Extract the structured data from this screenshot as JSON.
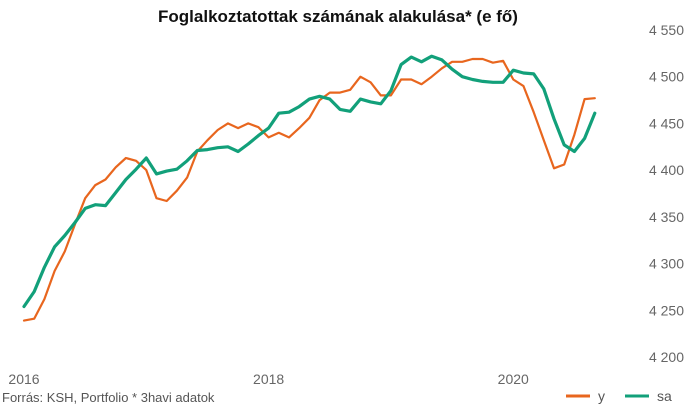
{
  "chart_data": {
    "type": "line",
    "title": "Foglalkoztatottak számának alakulása* (e fő)",
    "source": "Forrás: KSH, Portfolio  * 3havi adatok",
    "xlabel": "",
    "ylabel": "",
    "ylim": [
      4200,
      4550
    ],
    "yticks": [
      4200,
      4250,
      4300,
      4350,
      4400,
      4450,
      4500,
      4550
    ],
    "ytick_labels": [
      "4 200",
      "4 250",
      "4 300",
      "4 350",
      "4 400",
      "4 450",
      "4 500",
      "4 550"
    ],
    "xlim": [
      2016.0,
      2020.75
    ],
    "xticks": [
      2016,
      2018,
      2020
    ],
    "xtick_labels": [
      "2016",
      "2018",
      "2020"
    ],
    "grid": false,
    "legend_position": "bottom-right",
    "series": [
      {
        "name": "y",
        "color": "#e8661e",
        "x": [
          2016.0,
          2016.0833,
          2016.1667,
          2016.25,
          2016.3333,
          2016.4167,
          2016.5,
          2016.5833,
          2016.6667,
          2016.75,
          2016.8333,
          2016.9167,
          2017.0,
          2017.0833,
          2017.1667,
          2017.25,
          2017.3333,
          2017.4167,
          2017.5,
          2017.5833,
          2017.6667,
          2017.75,
          2017.8333,
          2017.9167,
          2018.0,
          2018.0833,
          2018.1667,
          2018.25,
          2018.3333,
          2018.4167,
          2018.5,
          2018.5833,
          2018.6667,
          2018.75,
          2018.8333,
          2018.9167,
          2019.0,
          2019.0833,
          2019.1667,
          2019.25,
          2019.3333,
          2019.4167,
          2019.5,
          2019.5833,
          2019.6667,
          2019.75,
          2019.8333,
          2019.9167,
          2020.0,
          2020.0833,
          2020.1667,
          2020.25,
          2020.3333,
          2020.4167,
          2020.5,
          2020.5833,
          2020.6667
        ],
        "values": [
          4239,
          4241,
          4262,
          4292,
          4313,
          4342,
          4370,
          4384,
          4390,
          4403,
          4413,
          4410,
          4400,
          4370,
          4367,
          4378,
          4392,
          4420,
          4432,
          4443,
          4450,
          4445,
          4450,
          4446,
          4435,
          4440,
          4435,
          4445,
          4456,
          4475,
          4483,
          4483,
          4486,
          4500,
          4494,
          4480,
          4480,
          4497,
          4497,
          4492,
          4500,
          4509,
          4516,
          4516,
          4519,
          4519,
          4515,
          4517,
          4497,
          4490,
          4462,
          4432,
          4402,
          4406,
          4438,
          4476,
          4477
        ]
      },
      {
        "name": "sa",
        "color": "#12a07a",
        "x": [
          2016.0,
          2016.0833,
          2016.1667,
          2016.25,
          2016.3333,
          2016.4167,
          2016.5,
          2016.5833,
          2016.6667,
          2016.75,
          2016.8333,
          2016.9167,
          2017.0,
          2017.0833,
          2017.1667,
          2017.25,
          2017.3333,
          2017.4167,
          2017.5,
          2017.5833,
          2017.6667,
          2017.75,
          2017.8333,
          2017.9167,
          2018.0,
          2018.0833,
          2018.1667,
          2018.25,
          2018.3333,
          2018.4167,
          2018.5,
          2018.5833,
          2018.6667,
          2018.75,
          2018.8333,
          2018.9167,
          2019.0,
          2019.0833,
          2019.1667,
          2019.25,
          2019.3333,
          2019.4167,
          2019.5,
          2019.5833,
          2019.6667,
          2019.75,
          2019.8333,
          2019.9167,
          2020.0,
          2020.0833,
          2020.1667,
          2020.25,
          2020.3333,
          2020.4167,
          2020.5,
          2020.5833,
          2020.6667
        ],
        "values": [
          4254,
          4270,
          4296,
          4318,
          4330,
          4344,
          4359,
          4363,
          4362,
          4376,
          4390,
          4401,
          4413,
          4396,
          4399,
          4401,
          4410,
          4421,
          4422,
          4424,
          4425,
          4420,
          4428,
          4437,
          4445,
          4461,
          4462,
          4468,
          4476,
          4479,
          4476,
          4465,
          4463,
          4476,
          4473,
          4471,
          4485,
          4513,
          4521,
          4516,
          4522,
          4518,
          4508,
          4500,
          4497,
          4495,
          4494,
          4494,
          4507,
          4504,
          4503,
          4487,
          4455,
          4427,
          4420,
          4434,
          4461
        ]
      }
    ]
  }
}
